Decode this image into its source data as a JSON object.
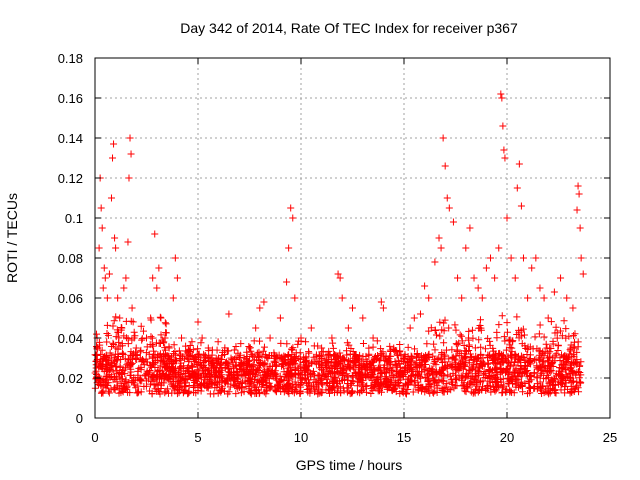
{
  "chart_data": {
    "type": "scatter",
    "title": "Day 342 of 2014, Rate Of TEC Index for receiver p367",
    "xlabel": "GPS time / hours",
    "ylabel": "ROTI / TECUs",
    "xlim": [
      0,
      25
    ],
    "ylim": [
      0,
      0.18
    ],
    "grid": true,
    "marker": "+",
    "color": "#ff0000",
    "xticks": [
      0,
      5,
      10,
      15,
      20,
      25
    ],
    "xtick_labels": [
      "0",
      "5",
      "10",
      "15",
      "20",
      "25"
    ],
    "yticks": [
      0,
      0.02,
      0.04,
      0.06,
      0.08,
      0.1,
      0.12,
      0.14,
      0.16,
      0.18
    ],
    "ytick_labels": [
      "0",
      "0.02",
      "0.04",
      "0.06",
      "0.08",
      "0.1",
      "0.12",
      "0.14",
      "0.16",
      "0.18"
    ],
    "points": [
      [
        0.1,
        0.04
      ],
      [
        0.2,
        0.085
      ],
      [
        0.25,
        0.12
      ],
      [
        0.3,
        0.105
      ],
      [
        0.35,
        0.095
      ],
      [
        0.4,
        0.065
      ],
      [
        0.45,
        0.075
      ],
      [
        0.5,
        0.07
      ],
      [
        0.6,
        0.06
      ],
      [
        0.7,
        0.072
      ],
      [
        0.8,
        0.11
      ],
      [
        0.85,
        0.13
      ],
      [
        0.9,
        0.137
      ],
      [
        0.95,
        0.09
      ],
      [
        1.0,
        0.085
      ],
      [
        1.1,
        0.06
      ],
      [
        1.2,
        0.05
      ],
      [
        1.3,
        0.045
      ],
      [
        1.4,
        0.065
      ],
      [
        1.5,
        0.07
      ],
      [
        1.6,
        0.088
      ],
      [
        1.65,
        0.12
      ],
      [
        1.7,
        0.14
      ],
      [
        1.75,
        0.132
      ],
      [
        1.8,
        0.055
      ],
      [
        1.9,
        0.04
      ],
      [
        2.0,
        0.035
      ],
      [
        2.2,
        0.03
      ],
      [
        2.5,
        0.04
      ],
      [
        2.7,
        0.05
      ],
      [
        2.8,
        0.07
      ],
      [
        2.9,
        0.092
      ],
      [
        3.0,
        0.065
      ],
      [
        3.1,
        0.075
      ],
      [
        3.2,
        0.05
      ],
      [
        3.4,
        0.04
      ],
      [
        3.6,
        0.035
      ],
      [
        3.8,
        0.06
      ],
      [
        3.9,
        0.08
      ],
      [
        4.0,
        0.07
      ],
      [
        4.2,
        0.04
      ],
      [
        4.5,
        0.03
      ],
      [
        5.0,
        0.048
      ],
      [
        5.2,
        0.04
      ],
      [
        5.5,
        0.035
      ],
      [
        6.0,
        0.03
      ],
      [
        6.5,
        0.052
      ],
      [
        7.0,
        0.03
      ],
      [
        7.5,
        0.035
      ],
      [
        7.8,
        0.045
      ],
      [
        8.0,
        0.055
      ],
      [
        8.2,
        0.058
      ],
      [
        8.5,
        0.04
      ],
      [
        9.0,
        0.05
      ],
      [
        9.3,
        0.068
      ],
      [
        9.4,
        0.085
      ],
      [
        9.5,
        0.105
      ],
      [
        9.6,
        0.1
      ],
      [
        9.7,
        0.06
      ],
      [
        10.0,
        0.04
      ],
      [
        10.5,
        0.045
      ],
      [
        11.0,
        0.035
      ],
      [
        11.5,
        0.04
      ],
      [
        11.8,
        0.072
      ],
      [
        11.9,
        0.07
      ],
      [
        12.0,
        0.06
      ],
      [
        12.3,
        0.045
      ],
      [
        12.5,
        0.055
      ],
      [
        13.0,
        0.05
      ],
      [
        13.5,
        0.04
      ],
      [
        13.9,
        0.058
      ],
      [
        14.0,
        0.055
      ],
      [
        14.5,
        0.035
      ],
      [
        15.0,
        0.03
      ],
      [
        15.3,
        0.045
      ],
      [
        15.5,
        0.05
      ],
      [
        15.8,
        0.052
      ],
      [
        16.0,
        0.066
      ],
      [
        16.2,
        0.06
      ],
      [
        16.5,
        0.078
      ],
      [
        16.7,
        0.09
      ],
      [
        16.8,
        0.085
      ],
      [
        16.9,
        0.14
      ],
      [
        17.0,
        0.126
      ],
      [
        17.1,
        0.11
      ],
      [
        17.2,
        0.105
      ],
      [
        17.4,
        0.098
      ],
      [
        17.6,
        0.07
      ],
      [
        17.8,
        0.06
      ],
      [
        18.0,
        0.085
      ],
      [
        18.2,
        0.095
      ],
      [
        18.4,
        0.07
      ],
      [
        18.6,
        0.065
      ],
      [
        18.8,
        0.06
      ],
      [
        19.0,
        0.075
      ],
      [
        19.2,
        0.08
      ],
      [
        19.4,
        0.07
      ],
      [
        19.6,
        0.085
      ],
      [
        19.7,
        0.162
      ],
      [
        19.75,
        0.16
      ],
      [
        19.8,
        0.146
      ],
      [
        19.85,
        0.134
      ],
      [
        19.9,
        0.13
      ],
      [
        20.0,
        0.1
      ],
      [
        20.2,
        0.08
      ],
      [
        20.4,
        0.07
      ],
      [
        20.5,
        0.115
      ],
      [
        20.6,
        0.127
      ],
      [
        20.7,
        0.106
      ],
      [
        20.8,
        0.08
      ],
      [
        21.0,
        0.06
      ],
      [
        21.2,
        0.075
      ],
      [
        21.4,
        0.08
      ],
      [
        21.6,
        0.065
      ],
      [
        21.8,
        0.06
      ],
      [
        22.0,
        0.05
      ],
      [
        22.3,
        0.063
      ],
      [
        22.6,
        0.07
      ],
      [
        22.9,
        0.06
      ],
      [
        23.2,
        0.055
      ],
      [
        23.4,
        0.104
      ],
      [
        23.45,
        0.116
      ],
      [
        23.5,
        0.112
      ],
      [
        23.55,
        0.095
      ],
      [
        23.6,
        0.08
      ],
      [
        23.7,
        0.072
      ]
    ]
  }
}
